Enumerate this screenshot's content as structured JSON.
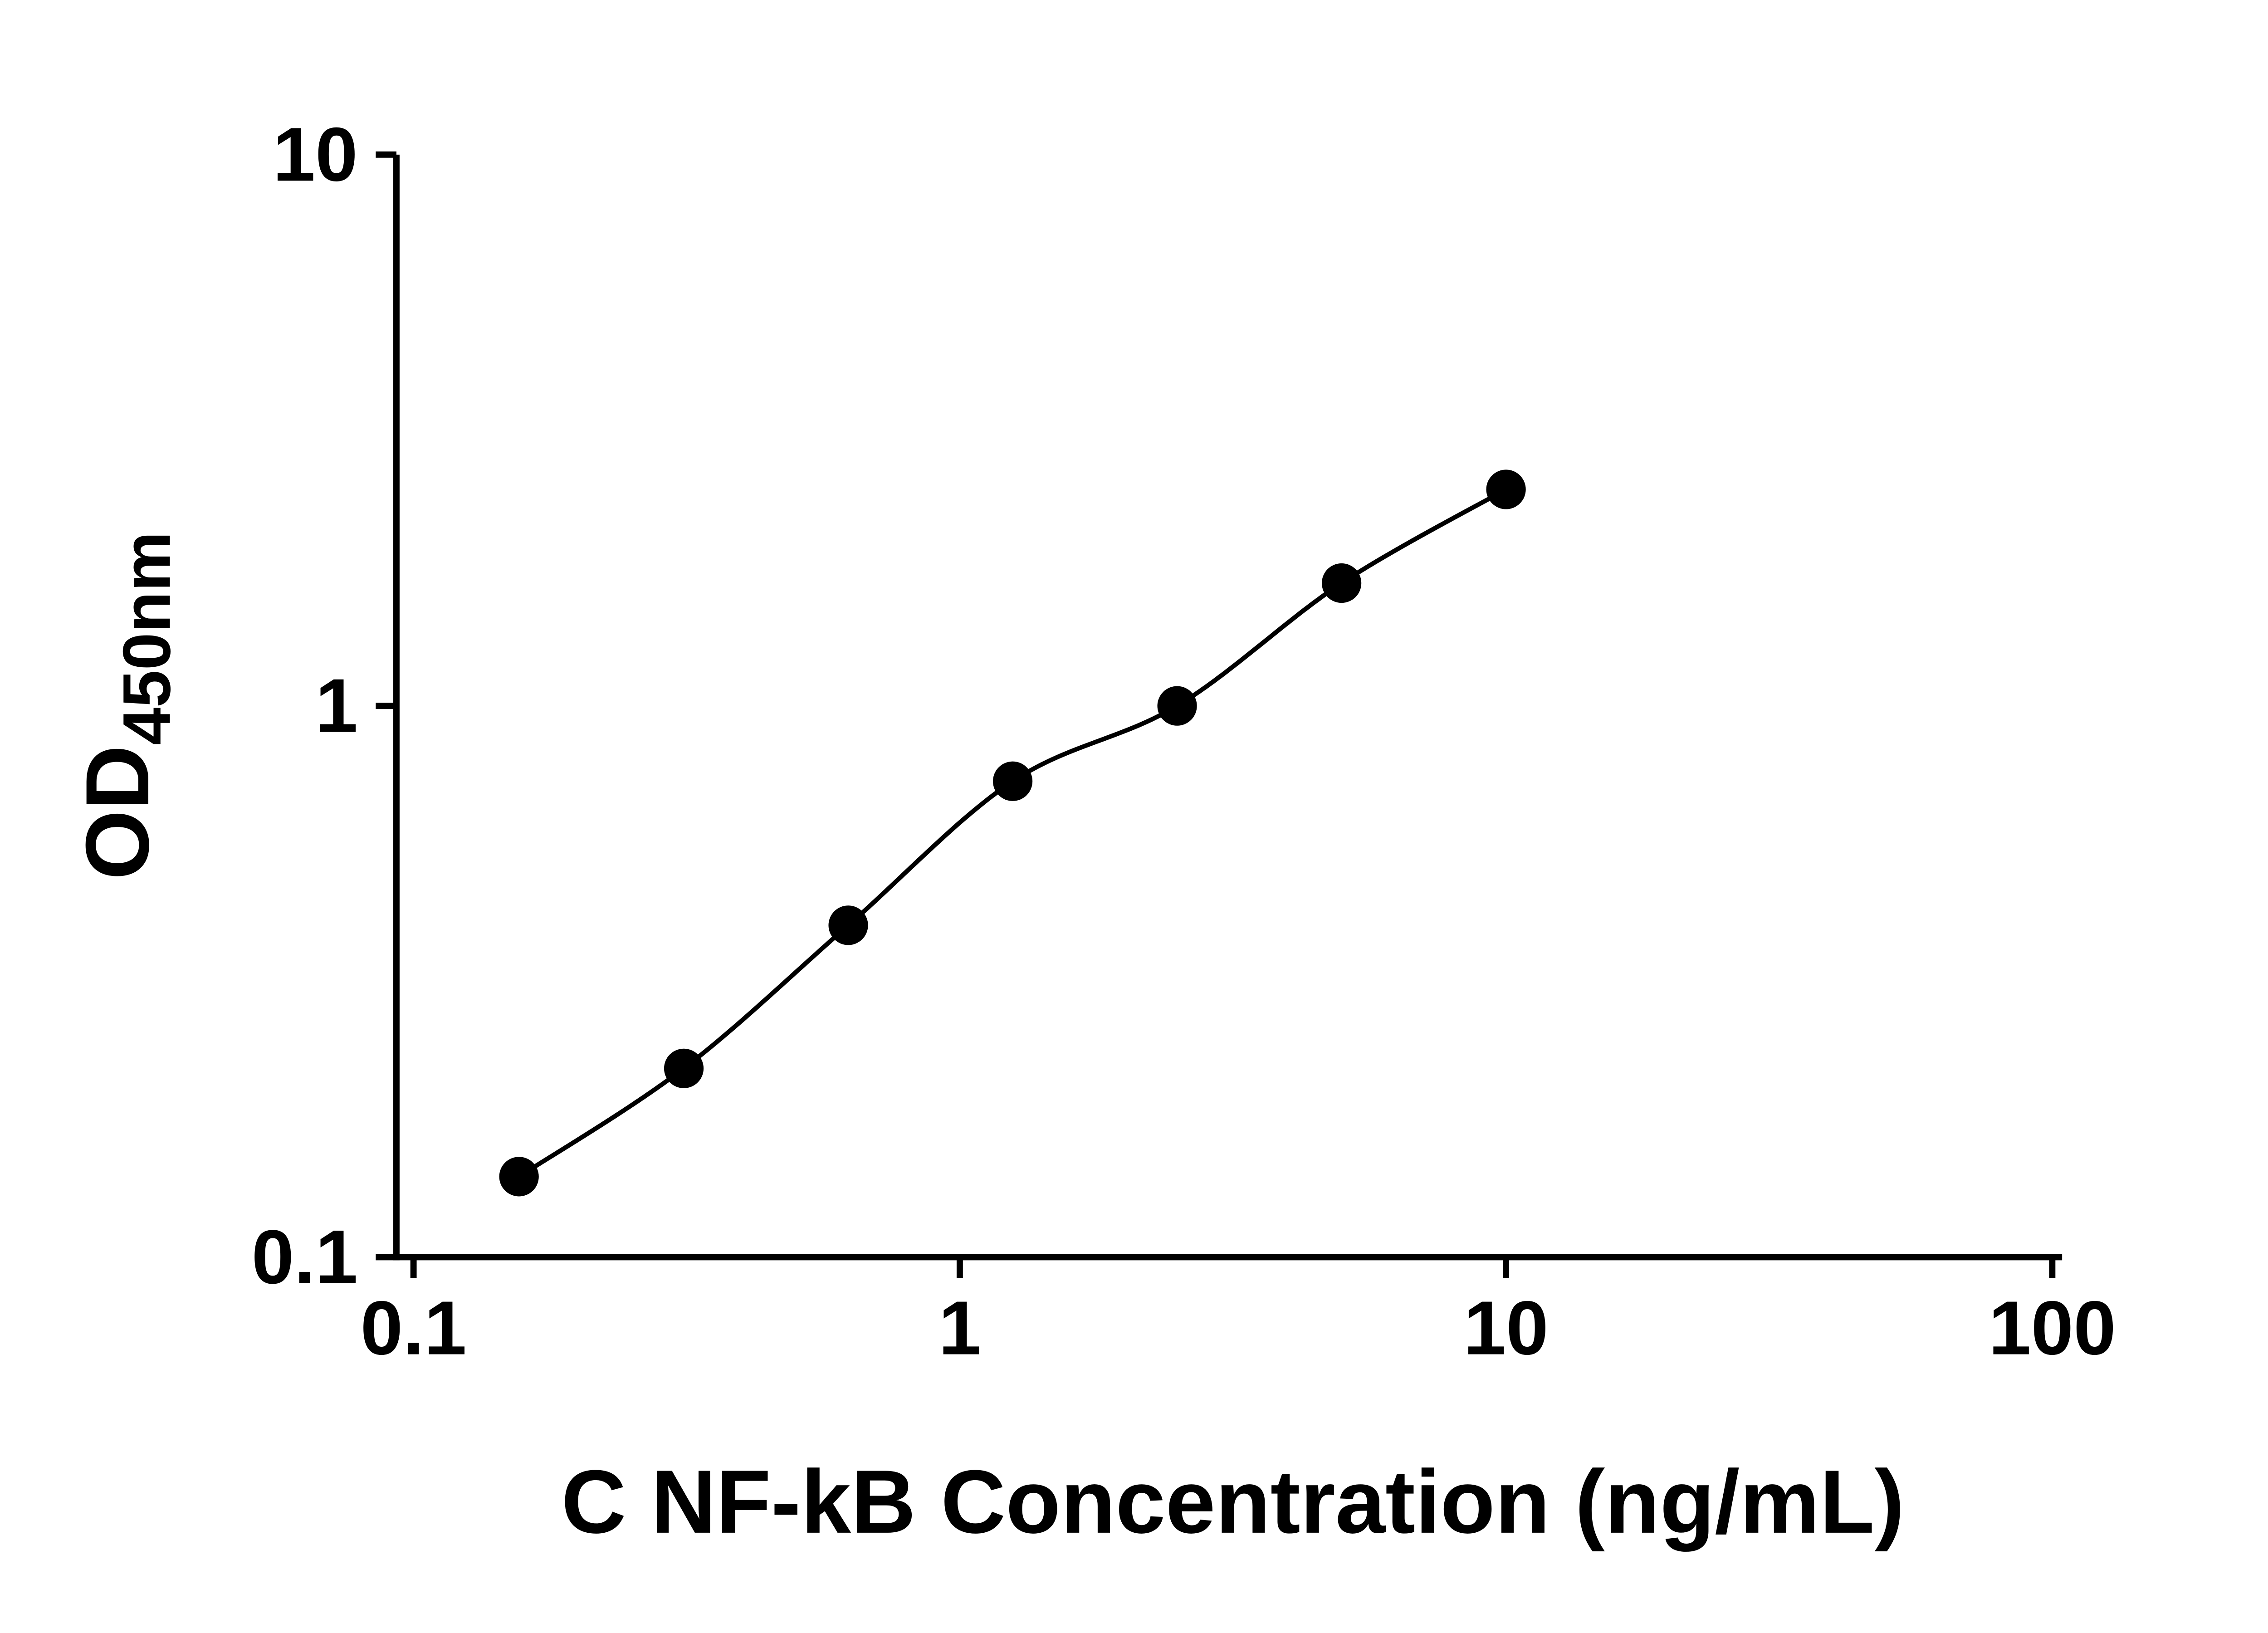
{
  "chart_data": {
    "type": "scatter",
    "title": "",
    "xlabel": "C NF-kB Concentration (ng/mL)",
    "ylabel": "OD450nm",
    "ylabel_main": "OD",
    "ylabel_sub": "450nm",
    "x_scale": "log",
    "y_scale": "log",
    "xlim": [
      0.1,
      100
    ],
    "ylim": [
      0.1,
      10
    ],
    "grid": false,
    "legend": "none",
    "background": "#ffffff",
    "line_color": "#000000",
    "x_ticks": [
      {
        "value": 0.1,
        "label": "0.1"
      },
      {
        "value": 1,
        "label": "1"
      },
      {
        "value": 10,
        "label": "10"
      },
      {
        "value": 100,
        "label": "100"
      }
    ],
    "y_ticks": [
      {
        "value": 0.1,
        "label": "0.1"
      },
      {
        "value": 1,
        "label": "1"
      },
      {
        "value": 10,
        "label": "10"
      }
    ],
    "series": [
      {
        "marker": "circle",
        "color": "#000000",
        "line": "smooth-fit",
        "points": [
          {
            "x": 0.156,
            "y": 0.14
          },
          {
            "x": 0.3125,
            "y": 0.22
          },
          {
            "x": 0.625,
            "y": 0.4
          },
          {
            "x": 1.25,
            "y": 0.73
          },
          {
            "x": 2.5,
            "y": 1.0
          },
          {
            "x": 5,
            "y": 1.67
          },
          {
            "x": 10,
            "y": 2.47
          }
        ]
      }
    ]
  }
}
